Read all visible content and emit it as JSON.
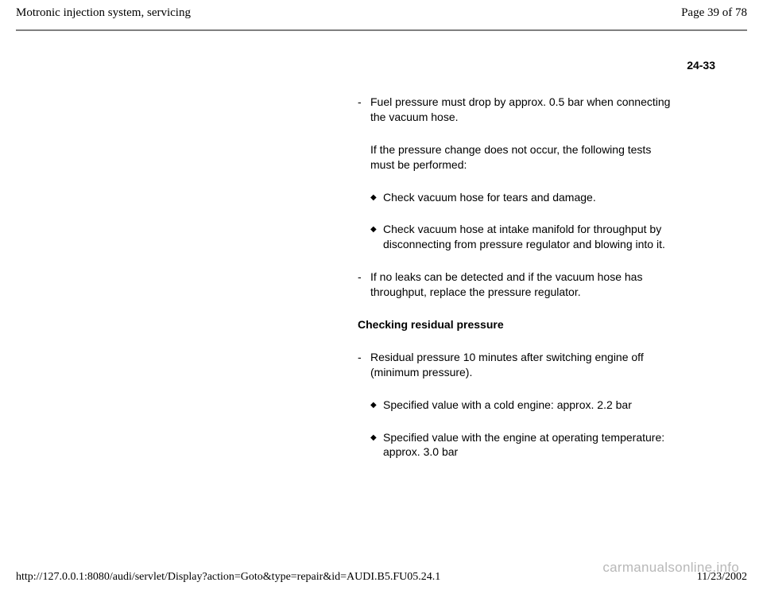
{
  "header": {
    "title": "Motronic injection system, servicing",
    "page_indicator": "Page 39 of 78"
  },
  "page_ref": "24-33",
  "content": {
    "dash1": "Fuel pressure must drop by approx. 0.5 bar when connecting the vacuum hose.",
    "indent1": "If the pressure change does not occur, the following tests must be performed:",
    "diamond1": "Check vacuum hose for tears and damage.",
    "diamond2": "Check vacuum hose at intake manifold for throughput by disconnecting from pressure regulator and blowing into it.",
    "dash2": "If no leaks can be detected and if the vacuum hose has throughput, replace the pressure regulator.",
    "heading": "Checking residual pressure",
    "dash3": "Residual pressure 10 minutes after switching engine off (minimum pressure).",
    "diamond3": "Specified value with a cold engine: approx. 2.2 bar",
    "diamond4": "Specified value with the engine at operating temperature: approx. 3.0 bar"
  },
  "markers": {
    "dash": "-",
    "diamond": "◆"
  },
  "footer": {
    "url": "http://127.0.0.1:8080/audi/servlet/Display?action=Goto&type=repair&id=AUDI.B5.FU05.24.1",
    "date": "11/23/2002"
  },
  "watermark": "carmanualsonline.info"
}
